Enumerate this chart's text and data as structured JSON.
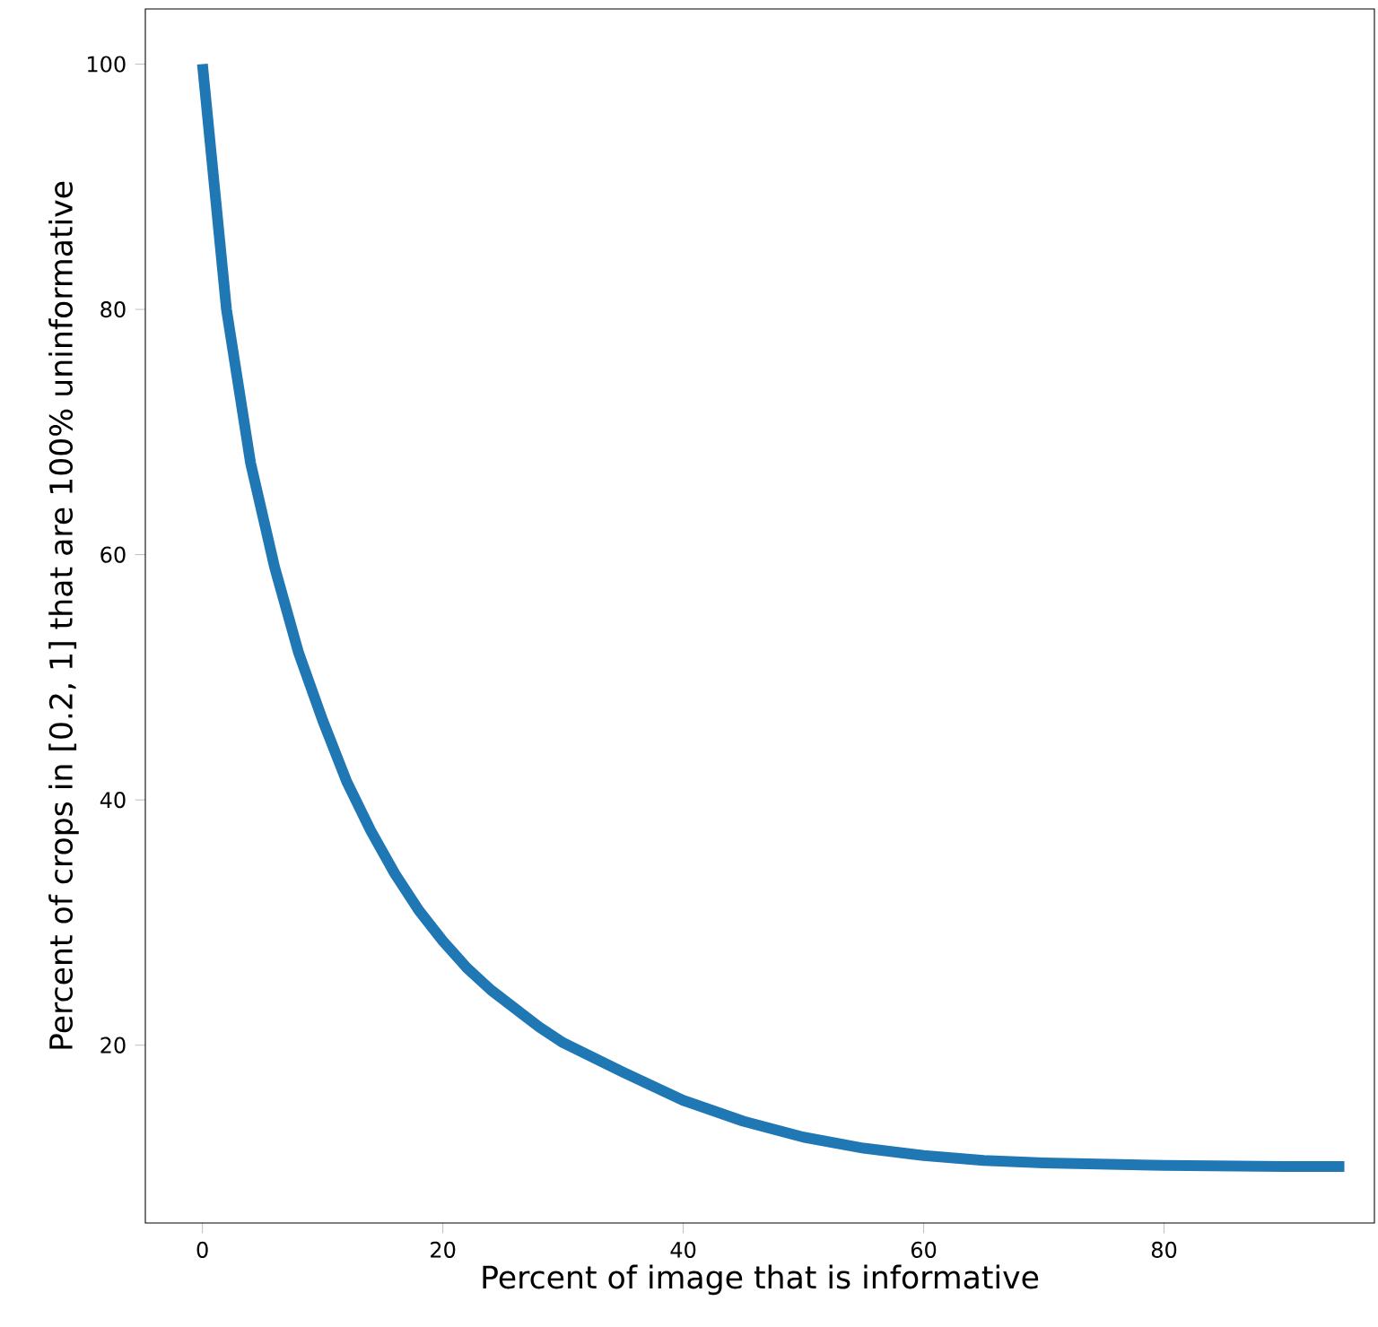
{
  "chart_data": {
    "type": "line",
    "xlabel": "Percent of image that is informative",
    "ylabel": "Percent of crops in [0.2, 1] that are 100% uninformative",
    "x": [
      0,
      2,
      4,
      6,
      8,
      10,
      12,
      14,
      16,
      18,
      20,
      22,
      24,
      26,
      28,
      30,
      35,
      40,
      45,
      50,
      55,
      60,
      65,
      70,
      80,
      90,
      95
    ],
    "values": [
      100,
      80,
      67.5,
      59,
      52,
      46.5,
      41.5,
      37.5,
      34,
      31,
      28.5,
      26.3,
      24.5,
      23,
      21.5,
      20.2,
      17.8,
      15.5,
      13.8,
      12.5,
      11.6,
      11,
      10.6,
      10.4,
      10.2,
      10.1,
      10.1
    ],
    "color": "#1f77b4",
    "xlim": [
      -4.75,
      97.5
    ],
    "ylim": [
      5.5,
      104.5
    ],
    "xticks": [
      0,
      20,
      40,
      60,
      80
    ],
    "yticks": [
      20,
      40,
      60,
      80,
      100
    ]
  }
}
